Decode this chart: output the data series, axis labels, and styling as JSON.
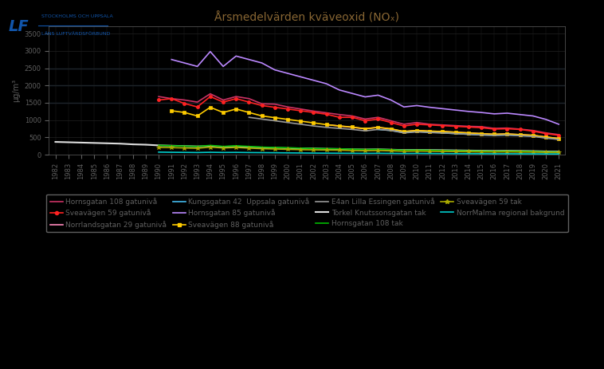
{
  "title": "Årsmedelvärden kväveoxid (NOₓ)",
  "ylabel": "µg/m³",
  "background_color": "#000000",
  "plot_bg_color": "#000000",
  "text_color": "#606060",
  "title_color": "#886633",
  "grid_color": "#222222",
  "ylim": [
    0,
    3700
  ],
  "yticks": [
    0,
    500,
    1000,
    1500,
    2000,
    2500,
    3000,
    3500
  ],
  "xlim_min": 1982,
  "xlim_max": 2021,
  "series": [
    {
      "label": "Hornsgatan 108 gatunivå",
      "color": "#cc3366",
      "marker": null,
      "linewidth": 1.2,
      "data_x": [
        1990,
        1991,
        1992,
        1993,
        1994,
        1995,
        1996,
        1997,
        1998,
        1999,
        2000,
        2001,
        2002,
        2003,
        2004,
        2005,
        2006,
        2007,
        2008,
        2009,
        2010,
        2011,
        2012,
        2013,
        2014,
        2015,
        2016,
        2017,
        2018,
        2019,
        2020,
        2021
      ],
      "data_y": [
        1680,
        1620,
        1580,
        1520,
        1760,
        1580,
        1680,
        1620,
        1470,
        1460,
        1380,
        1320,
        1260,
        1210,
        1160,
        1120,
        1030,
        1080,
        980,
        880,
        930,
        880,
        860,
        840,
        820,
        810,
        760,
        770,
        740,
        700,
        630,
        580
      ]
    },
    {
      "label": "Sveavägen 59 gatunivå",
      "color": "#ff2222",
      "marker": "o",
      "markersize": 3,
      "linewidth": 1.2,
      "data_x": [
        1990,
        1991,
        1992,
        1993,
        1994,
        1995,
        1996,
        1997,
        1998,
        1999,
        2000,
        2001,
        2002,
        2003,
        2004,
        2005,
        2006,
        2007,
        2008,
        2009,
        2010,
        2011,
        2012,
        2013,
        2014,
        2015,
        2016,
        2017,
        2018,
        2019,
        2020,
        2021
      ],
      "data_y": [
        1580,
        1620,
        1480,
        1380,
        1680,
        1520,
        1620,
        1520,
        1420,
        1370,
        1320,
        1270,
        1220,
        1170,
        1080,
        1080,
        980,
        1030,
        930,
        830,
        880,
        860,
        840,
        820,
        800,
        780,
        740,
        750,
        730,
        680,
        610,
        560
      ]
    },
    {
      "label": "Norrlandsgatan 29 gatunivå",
      "color": "#ff88bb",
      "marker": null,
      "linewidth": 1.2,
      "data_x": [
        2003,
        2004,
        2005,
        2006,
        2007,
        2008,
        2009,
        2010,
        2011,
        2012,
        2013,
        2014,
        2015,
        2016,
        2017,
        2018,
        2019,
        2020,
        2021
      ],
      "data_y": [
        870,
        830,
        790,
        750,
        790,
        740,
        670,
        700,
        680,
        670,
        650,
        630,
        610,
        590,
        600,
        580,
        560,
        510,
        470
      ]
    },
    {
      "label": "Kungsgatan 42  Uppsala gatunivå",
      "color": "#44bbee",
      "marker": null,
      "linewidth": 1.2,
      "data_x": [
        2007,
        2008,
        2009,
        2010,
        2011,
        2012,
        2013,
        2014,
        2015,
        2016,
        2017,
        2018,
        2019,
        2020,
        2021
      ],
      "data_y": [
        730,
        700,
        640,
        670,
        650,
        630,
        610,
        590,
        570,
        560,
        570,
        550,
        540,
        490,
        450
      ]
    },
    {
      "label": "Hornsgatan 85 gatunivå",
      "color": "#bb88ff",
      "marker": null,
      "linewidth": 1.2,
      "data_x": [
        1991,
        1992,
        1993,
        1994,
        1995,
        1996,
        1997,
        1998,
        1999,
        2000,
        2001,
        2002,
        2003,
        2004,
        2005,
        2006,
        2007,
        2008,
        2009,
        2010,
        2011,
        2012,
        2013,
        2014,
        2015,
        2016,
        2017,
        2018,
        2019,
        2020,
        2021
      ],
      "data_y": [
        2750,
        2650,
        2550,
        2980,
        2550,
        2850,
        2750,
        2650,
        2450,
        2350,
        2250,
        2150,
        2050,
        1870,
        1770,
        1670,
        1720,
        1580,
        1380,
        1420,
        1370,
        1330,
        1290,
        1250,
        1220,
        1180,
        1200,
        1160,
        1120,
        1020,
        880
      ]
    },
    {
      "label": "Sveavägen 88 gatunivå",
      "color": "#ffcc00",
      "marker": "s",
      "markersize": 3,
      "linewidth": 1.2,
      "data_x": [
        1991,
        1992,
        1993,
        1994,
        1995,
        1996,
        1997,
        1998,
        1999,
        2000,
        2001,
        2002,
        2003,
        2004,
        2005,
        2006,
        2007,
        2008,
        2009,
        2010,
        2011,
        2012,
        2013,
        2014,
        2015,
        2016,
        2017,
        2018,
        2019,
        2020,
        2021
      ],
      "data_y": [
        1270,
        1220,
        1120,
        1370,
        1220,
        1320,
        1220,
        1120,
        1070,
        1020,
        970,
        920,
        870,
        830,
        800,
        750,
        790,
        750,
        670,
        700,
        680,
        670,
        650,
        630,
        610,
        590,
        600,
        580,
        560,
        510,
        470
      ]
    },
    {
      "label": "E4an Lilla Essingen gatunivå",
      "color": "#999999",
      "marker": null,
      "linewidth": 1.2,
      "data_x": [
        1997,
        1998,
        1999,
        2000,
        2001,
        2002,
        2003,
        2004,
        2005,
        2006,
        2007,
        2008,
        2009,
        2010,
        2011,
        2012,
        2013,
        2014,
        2015,
        2016,
        2017,
        2018,
        2019,
        2020,
        2021
      ],
      "data_y": [
        1080,
        1030,
        980,
        930,
        880,
        830,
        790,
        760,
        730,
        690,
        730,
        700,
        630,
        660,
        640,
        630,
        610,
        590,
        570,
        560,
        570,
        550,
        530,
        480,
        440
      ]
    },
    {
      "label": "Torkel Knutssonsgatan tak",
      "color": "#dddddd",
      "marker": null,
      "linewidth": 1.5,
      "data_x": [
        1982,
        1983,
        1984,
        1985,
        1986,
        1987,
        1988,
        1989,
        1990,
        1991,
        1992,
        1993,
        1994,
        1995,
        1996,
        1997,
        1998,
        1999,
        2000,
        2001,
        2002,
        2003,
        2004,
        2005,
        2006,
        2007,
        2008,
        2009,
        2010,
        2011,
        2012,
        2013,
        2014,
        2015,
        2016,
        2017,
        2018,
        2019,
        2020,
        2021
      ],
      "data_y": [
        370,
        360,
        350,
        340,
        330,
        320,
        300,
        290,
        270,
        260,
        250,
        240,
        250,
        230,
        240,
        220,
        210,
        200,
        190,
        185,
        180,
        170,
        165,
        155,
        150,
        155,
        145,
        135,
        140,
        135,
        130,
        125,
        120,
        115,
        110,
        115,
        110,
        105,
        95,
        90
      ]
    },
    {
      "label": "Hornsgatan 108 tak",
      "color": "#00bb00",
      "marker": null,
      "linewidth": 1.2,
      "data_x": [
        1990,
        1991,
        1992,
        1993,
        1994,
        1995,
        1996,
        1997,
        1998,
        1999,
        2000,
        2001,
        2002,
        2003,
        2004,
        2005,
        2006,
        2007,
        2008,
        2009,
        2010,
        2011,
        2012,
        2013,
        2014,
        2015,
        2016,
        2017,
        2018,
        2019,
        2020,
        2021
      ],
      "data_y": [
        270,
        260,
        250,
        240,
        270,
        240,
        260,
        240,
        220,
        210,
        200,
        190,
        180,
        175,
        170,
        160,
        150,
        155,
        145,
        130,
        135,
        130,
        120,
        115,
        110,
        105,
        100,
        105,
        100,
        95,
        85,
        80
      ]
    },
    {
      "label": "Sveavägen 59 tak",
      "color": "#aaaa00",
      "marker": "*",
      "markersize": 4,
      "linewidth": 1.2,
      "data_x": [
        1990,
        1991,
        1992,
        1993,
        1994,
        1995,
        1996,
        1997,
        1998,
        1999,
        2000,
        2001,
        2002,
        2003,
        2004,
        2005,
        2006,
        2007,
        2008,
        2009,
        2010,
        2011,
        2012,
        2013,
        2014,
        2015,
        2016,
        2017,
        2018,
        2019,
        2020,
        2021
      ],
      "data_y": [
        210,
        205,
        195,
        185,
        220,
        195,
        210,
        190,
        175,
        165,
        155,
        145,
        140,
        135,
        130,
        120,
        115,
        120,
        110,
        100,
        105,
        100,
        95,
        90,
        85,
        80,
        80,
        82,
        78,
        75,
        68,
        62
      ]
    },
    {
      "label": "NorrMalma regional bakgrund",
      "color": "#00cccc",
      "marker": null,
      "linewidth": 1.2,
      "data_x": [
        1990,
        1991,
        1992,
        1993,
        1994,
        1995,
        1996,
        1997,
        1998,
        1999,
        2000,
        2001,
        2002,
        2003,
        2004,
        2005,
        2006,
        2007,
        2008,
        2009,
        2010,
        2011,
        2012,
        2013,
        2014,
        2015,
        2016,
        2017,
        2018,
        2019,
        2020,
        2021
      ],
      "data_y": [
        75,
        70,
        67,
        63,
        70,
        65,
        67,
        63,
        60,
        57,
        53,
        50,
        47,
        45,
        43,
        41,
        39,
        41,
        38,
        35,
        37,
        35,
        33,
        31,
        30,
        29,
        27,
        28,
        26,
        25,
        23,
        22
      ]
    }
  ],
  "hlines": [
    {
      "y": 2500,
      "color": "#1a2a3a",
      "linewidth": 1.0
    },
    {
      "y": 2000,
      "color": "#1a2a3a",
      "linewidth": 1.0
    },
    {
      "y": 1500,
      "color": "#1a2a3a",
      "linewidth": 1.0
    }
  ],
  "legend_cols": 4,
  "legend_fontsize": 6.5,
  "title_fontsize": 10,
  "tick_fontsize": 6,
  "ylabel_fontsize": 7,
  "logo_text_line1": "LF  STOCKHOLMS OCH UPPSALA",
  "logo_text_line2": "      LÄNS LUFTVÅRDSFÖRBUND"
}
